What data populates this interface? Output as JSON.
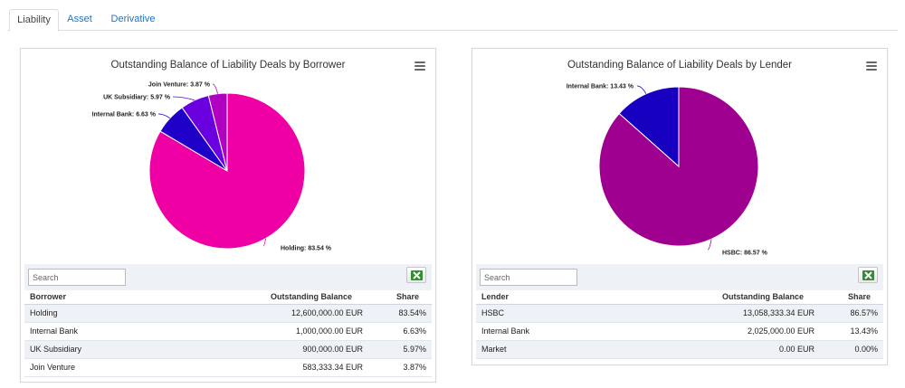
{
  "tabs": [
    {
      "label": "Liability",
      "active": true
    },
    {
      "label": "Asset",
      "active": false
    },
    {
      "label": "Derivative",
      "active": false
    }
  ],
  "search_placeholder": "Search",
  "borrower": {
    "columns": [
      "Borrower",
      "Outstanding Balance",
      "Share"
    ],
    "rows": [
      [
        "Holding",
        "12,600,000.00 EUR",
        "83.54%"
      ],
      [
        "Internal Bank",
        "1,000,000.00 EUR",
        "6.63%"
      ],
      [
        "UK Subsidiary",
        "900,000.00 EUR",
        "5.97%"
      ],
      [
        "Join Venture",
        "583,333.34 EUR",
        "3.87%"
      ]
    ]
  },
  "lender": {
    "columns": [
      "Lender",
      "Outstanding Balance",
      "Share"
    ],
    "rows": [
      [
        "HSBC",
        "13,058,333.34 EUR",
        "86.57%"
      ],
      [
        "Internal Bank",
        "2,025,000.00 EUR",
        "13.43%"
      ],
      [
        "Market",
        "0.00 EUR",
        "0.00%"
      ]
    ]
  },
  "chart_data": [
    {
      "type": "pie",
      "title": "Outstanding Balance of Liability Deals by Borrower",
      "series": [
        {
          "name": "",
          "values": [
            83.54,
            6.63,
            5.97,
            3.87
          ]
        }
      ],
      "categories": [
        "Holding",
        "Internal Bank",
        "UK Subsidiary",
        "Join Venture"
      ],
      "labels": [
        "Holding: 83.54 %",
        "Internal Bank: 6.63 %",
        "UK Subsidiary: 5.97 %",
        "Join Venture: 3.87 %"
      ],
      "colors": [
        "#ee00a5",
        "#1f00c8",
        "#6a00e0",
        "#b000c0"
      ]
    },
    {
      "type": "pie",
      "title": "Outstanding Balance of Liability Deals by Lender",
      "series": [
        {
          "name": "",
          "values": [
            86.57,
            13.43
          ]
        }
      ],
      "categories": [
        "HSBC",
        "Internal Bank"
      ],
      "labels": [
        "HSBC: 86.57 %",
        "Internal Bank: 13.43 %"
      ],
      "colors": [
        "#a0008f",
        "#1800c0"
      ]
    }
  ]
}
